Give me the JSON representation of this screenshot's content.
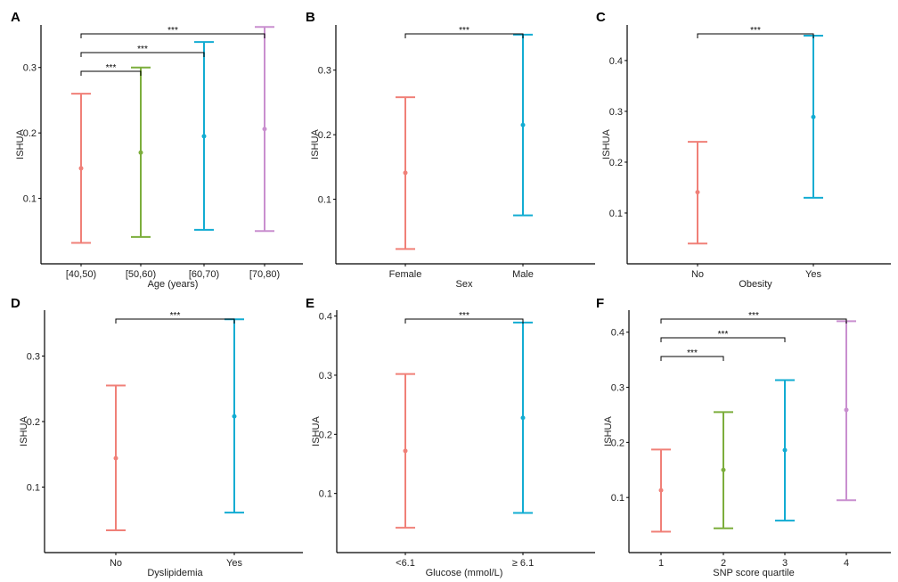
{
  "figure": {
    "panel_colors": {
      "salmon": "#F08078",
      "green": "#7CAE3C",
      "cyan": "#12ACD2",
      "purple": "#C98FCF"
    }
  },
  "chart_data": [
    {
      "panel": "A",
      "type": "errorbar",
      "xlabel": "Age (years)",
      "ylabel": "ISHUA",
      "ylim": [
        0.0,
        0.365
      ],
      "yticks": [
        "0.1",
        "0.2",
        "0.3"
      ],
      "ytick_values": [
        0.1,
        0.2,
        0.3
      ],
      "categories": [
        "[40,50)",
        "[50,60)",
        "[60,70)",
        "[70,80)"
      ],
      "colors": [
        "#F08078",
        "#7CAE3C",
        "#12ACD2",
        "#C98FCF"
      ],
      "mean": [
        0.146,
        0.17,
        0.195,
        0.206
      ],
      "lower": [
        0.032,
        0.041,
        0.052,
        0.05
      ],
      "upper": [
        0.26,
        0.3,
        0.339,
        0.362
      ],
      "brackets": [
        {
          "from": 0,
          "to": 1,
          "label": "***"
        },
        {
          "from": 0,
          "to": 2,
          "label": "***"
        },
        {
          "from": 0,
          "to": 3,
          "label": "***"
        }
      ]
    },
    {
      "panel": "B",
      "type": "errorbar",
      "xlabel": "Sex",
      "ylabel": "ISHUA",
      "ylim": [
        0.0,
        0.37
      ],
      "yticks": [
        "0.1",
        "0.2",
        "0.3"
      ],
      "ytick_values": [
        0.1,
        0.2,
        0.3
      ],
      "categories": [
        "Female",
        "Male"
      ],
      "colors": [
        "#F08078",
        "#12ACD2"
      ],
      "mean": [
        0.141,
        0.215
      ],
      "lower": [
        0.023,
        0.075
      ],
      "upper": [
        0.258,
        0.355
      ],
      "brackets": [
        {
          "from": 0,
          "to": 1,
          "label": "***"
        }
      ]
    },
    {
      "panel": "C",
      "type": "errorbar",
      "xlabel": "Obesity",
      "ylabel": "ISHUA",
      "ylim": [
        0.0,
        0.47
      ],
      "yticks": [
        "0.1",
        "0.2",
        "0.3",
        "0.4"
      ],
      "ytick_values": [
        0.1,
        0.2,
        0.3,
        0.4
      ],
      "categories": [
        "No",
        "Yes"
      ],
      "colors": [
        "#F08078",
        "#12ACD2"
      ],
      "mean": [
        0.141,
        0.289
      ],
      "lower": [
        0.04,
        0.13
      ],
      "upper": [
        0.24,
        0.449
      ],
      "brackets": [
        {
          "from": 0,
          "to": 1,
          "label": "***"
        }
      ]
    },
    {
      "panel": "D",
      "type": "errorbar",
      "xlabel": "Dyslipidemia",
      "ylabel": "ISHUA",
      "ylim": [
        0.0,
        0.37
      ],
      "yticks": [
        "0.1",
        "0.2",
        "0.3"
      ],
      "ytick_values": [
        0.1,
        0.2,
        0.3
      ],
      "categories": [
        "No",
        "Yes"
      ],
      "colors": [
        "#F08078",
        "#12ACD2"
      ],
      "mean": [
        0.144,
        0.208
      ],
      "lower": [
        0.034,
        0.061
      ],
      "upper": [
        0.255,
        0.356
      ],
      "brackets": [
        {
          "from": 0,
          "to": 1,
          "label": "***"
        }
      ]
    },
    {
      "panel": "E",
      "type": "errorbar",
      "xlabel": "Glucose (mmol/L)",
      "ylabel": "ISHUA",
      "ylim": [
        0.0,
        0.41
      ],
      "yticks": [
        "0.1",
        "0.2",
        "0.3",
        "0.4"
      ],
      "ytick_values": [
        0.1,
        0.2,
        0.3,
        0.4
      ],
      "categories": [
        "<6.1",
        "≥ 6.1"
      ],
      "colors": [
        "#F08078",
        "#12ACD2"
      ],
      "mean": [
        0.172,
        0.228
      ],
      "lower": [
        0.042,
        0.067
      ],
      "upper": [
        0.302,
        0.389
      ],
      "brackets": [
        {
          "from": 0,
          "to": 1,
          "label": "***"
        }
      ]
    },
    {
      "panel": "F",
      "type": "errorbar",
      "xlabel": "SNP score quartile",
      "ylabel": "ISHUA",
      "ylim": [
        0.0,
        0.44
      ],
      "yticks": [
        "0.1",
        "0.2",
        "0.3",
        "0.4"
      ],
      "ytick_values": [
        0.1,
        0.2,
        0.3,
        0.4
      ],
      "categories": [
        "1",
        "2",
        "3",
        "4"
      ],
      "colors": [
        "#F08078",
        "#7CAE3C",
        "#12ACD2",
        "#C98FCF"
      ],
      "mean": [
        0.113,
        0.15,
        0.186,
        0.259
      ],
      "lower": [
        0.038,
        0.044,
        0.058,
        0.095
      ],
      "upper": [
        0.187,
        0.255,
        0.313,
        0.42
      ],
      "brackets": [
        {
          "from": 0,
          "to": 1,
          "label": "***"
        },
        {
          "from": 0,
          "to": 2,
          "label": "***"
        },
        {
          "from": 0,
          "to": 3,
          "label": "***"
        }
      ]
    }
  ]
}
